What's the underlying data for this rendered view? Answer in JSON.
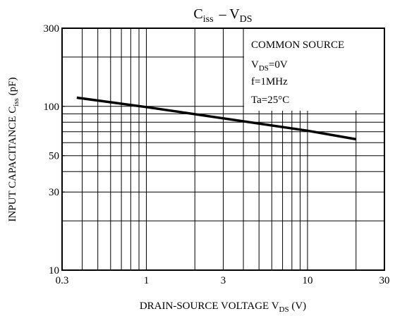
{
  "chart_data": {
    "type": "line",
    "title": [
      "C",
      "iss",
      "–  V",
      "DS"
    ],
    "x_label": [
      "DRAIN-SOURCE VOLTAGE  V",
      "DS",
      "  (V)"
    ],
    "y_label": [
      "INPUT CAPACITANCE  C",
      "iss",
      "  (pF)"
    ],
    "annotations": [
      "COMMON SOURCE",
      [
        "V",
        "DS",
        "=0V"
      ],
      "f=1MHz",
      "Ta=25°C"
    ],
    "x": [
      0.37,
      1,
      10,
      20
    ],
    "series": [
      {
        "name": "Ciss",
        "color": "#000000",
        "values": [
          113,
          99,
          71,
          63
        ]
      }
    ],
    "xlim": [
      0.3,
      30
    ],
    "ylim": [
      10,
      300
    ],
    "xticks": [
      0.3,
      1,
      3,
      10,
      30
    ],
    "yticks": [
      10,
      30,
      50,
      100,
      300
    ],
    "xgrid": [
      0.4,
      0.5,
      0.6,
      0.7,
      0.8,
      0.9,
      1,
      2,
      3,
      4,
      5,
      6,
      7,
      8,
      9,
      10,
      20
    ],
    "ygrid": [
      20,
      30,
      40,
      50,
      60,
      70,
      80,
      90,
      100,
      200
    ],
    "log_x": true,
    "log_y": true,
    "grid": true
  }
}
